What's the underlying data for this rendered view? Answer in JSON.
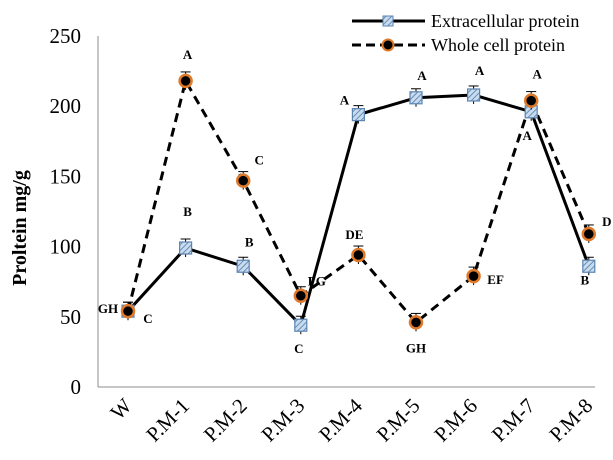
{
  "chart_data": {
    "type": "line",
    "title": "",
    "xlabel": "",
    "ylabel": "Proltein mg/g",
    "ylim": [
      0,
      250
    ],
    "yticks": [
      "0",
      "50",
      "100",
      "150",
      "200",
      "250"
    ],
    "categories": [
      "W",
      "P.M-1",
      "P.M-2",
      "P.M-3",
      "P.M-4",
      "P.M-5",
      "P.M-6",
      "P.M-7",
      "P.M-8"
    ],
    "grid": false,
    "legend": "top-right",
    "series": [
      {
        "name": "Extracellular protein",
        "values": [
          54,
          99,
          86,
          44,
          194,
          206,
          208,
          196,
          86
        ],
        "labels": [
          "C",
          "B",
          "B",
          "C",
          "A",
          "A",
          "A",
          "A",
          "B"
        ],
        "color": "#000000",
        "marker_color": "#a9c6e4",
        "line_style": "solid"
      },
      {
        "name": "Whole cell protein",
        "values": [
          54,
          218,
          147,
          65,
          94,
          46,
          79,
          204,
          109
        ],
        "labels": [
          "GH",
          "A",
          "C",
          "FG",
          "DE",
          "GH",
          "EF",
          "A",
          "D"
        ],
        "color": "#000000",
        "marker_color": "#e07a2a",
        "line_style": "dashed"
      }
    ]
  }
}
